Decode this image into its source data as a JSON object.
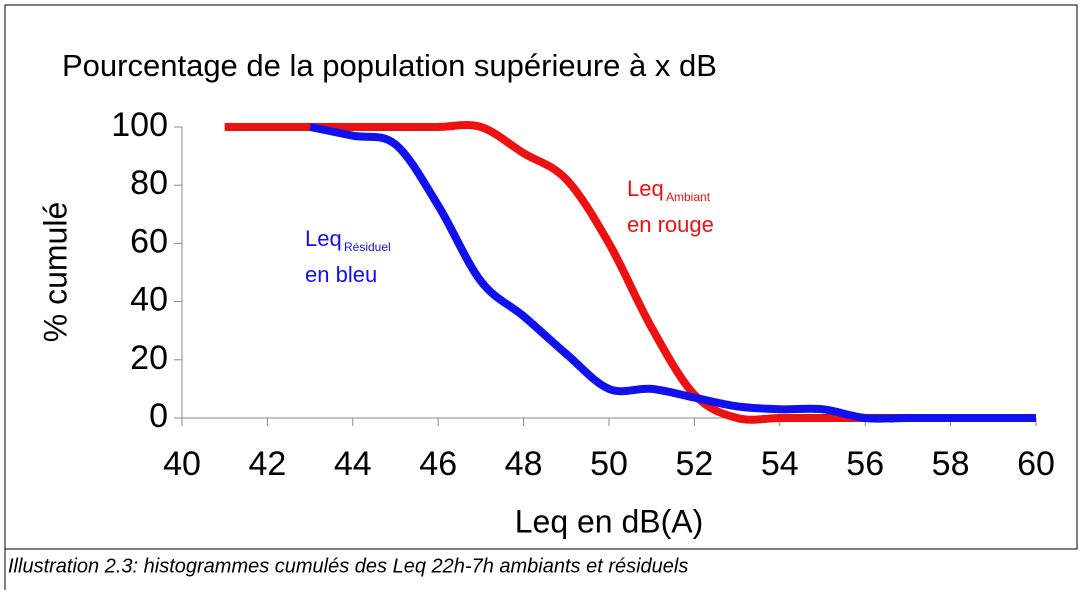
{
  "chart_data": {
    "type": "line",
    "title": "Pourcentage de la population supérieure à x dB",
    "x_label": "Leq en dB(A)",
    "y_label": "% cumulé",
    "caption": "Illustration 2.3:  histogrammes cumulés des Leq 22h-7h ambiants et résiduels",
    "xlim": [
      40,
      60
    ],
    "xticks": [
      40,
      42,
      44,
      46,
      48,
      50,
      52,
      54,
      56,
      58,
      60
    ],
    "ylim": [
      0,
      100
    ],
    "yticks": [
      0,
      20,
      40,
      60,
      80,
      100
    ],
    "series": [
      {
        "name": "Ambiant",
        "color": "#ee1111",
        "x": [
          41,
          42,
          43,
          44,
          45,
          46,
          47,
          48,
          49,
          50,
          51,
          52,
          53,
          54,
          55,
          56,
          57,
          58,
          59,
          60
        ],
        "values": [
          100,
          100,
          100,
          100,
          100,
          100,
          100,
          91,
          82,
          60,
          31,
          8,
          0,
          0,
          0,
          0,
          0,
          0,
          0,
          0
        ]
      },
      {
        "name": "Résiduel",
        "color": "#1111ee",
        "x": [
          43,
          44,
          45,
          46,
          47,
          48,
          49,
          50,
          51,
          52,
          53,
          54,
          55,
          56,
          57,
          58,
          59,
          60
        ],
        "values": [
          100,
          97,
          94,
          73,
          47,
          35,
          22,
          10,
          10,
          7,
          4,
          3,
          3,
          0,
          0,
          0,
          0,
          0
        ]
      }
    ],
    "annotations": [
      {
        "text": "Leq",
        "sub": "Résiduel",
        "line2": "en bleu",
        "color": "#1111ee"
      },
      {
        "text": "Leq",
        "sub": "Ambiant",
        "line2": "en rouge",
        "color": "#ee1111"
      }
    ]
  }
}
